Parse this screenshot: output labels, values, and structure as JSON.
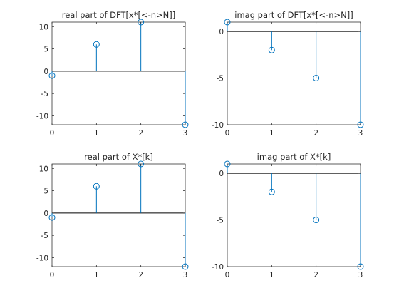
{
  "chart_data": [
    {
      "type": "stem",
      "title": "real part of DFT[x*[<-n>N]]",
      "x": [
        0,
        1,
        2,
        3
      ],
      "values": [
        -1,
        6,
        11,
        -12
      ],
      "xlim": [
        0,
        3
      ],
      "ylim": [
        -12,
        11
      ],
      "xticks": [
        0,
        1,
        2,
        3
      ],
      "yticks": [
        -10,
        -5,
        0,
        5,
        10
      ],
      "grid": false,
      "baseline": 0
    },
    {
      "type": "stem",
      "title": "imag part of DFT[x*[<-n>N]]",
      "x": [
        0,
        1,
        2,
        3
      ],
      "values": [
        1,
        -2,
        -5,
        -10
      ],
      "xlim": [
        0,
        3
      ],
      "ylim": [
        -10,
        1
      ],
      "xticks": [
        0,
        1,
        2,
        3
      ],
      "yticks": [
        -10,
        -5,
        0
      ],
      "grid": false,
      "baseline": 0
    },
    {
      "type": "stem",
      "title": "real part of X*[k]",
      "x": [
        0,
        1,
        2,
        3
      ],
      "values": [
        -1,
        6,
        11,
        -12
      ],
      "xlim": [
        0,
        3
      ],
      "ylim": [
        -12,
        11
      ],
      "xticks": [
        0,
        1,
        2,
        3
      ],
      "yticks": [
        -10,
        -5,
        0,
        5,
        10
      ],
      "grid": false,
      "baseline": 0
    },
    {
      "type": "stem",
      "title": "imag part of X*[k]",
      "x": [
        0,
        1,
        2,
        3
      ],
      "values": [
        1,
        -2,
        -5,
        -10
      ],
      "xlim": [
        0,
        3
      ],
      "ylim": [
        -10,
        1
      ],
      "xticks": [
        0,
        1,
        2,
        3
      ],
      "yticks": [
        -10,
        -5,
        0
      ],
      "grid": false,
      "baseline": 0
    }
  ],
  "colors": {
    "stem": "#0072bd",
    "axes": "#262626",
    "baseline": "#000000",
    "background": "#ffffff"
  }
}
